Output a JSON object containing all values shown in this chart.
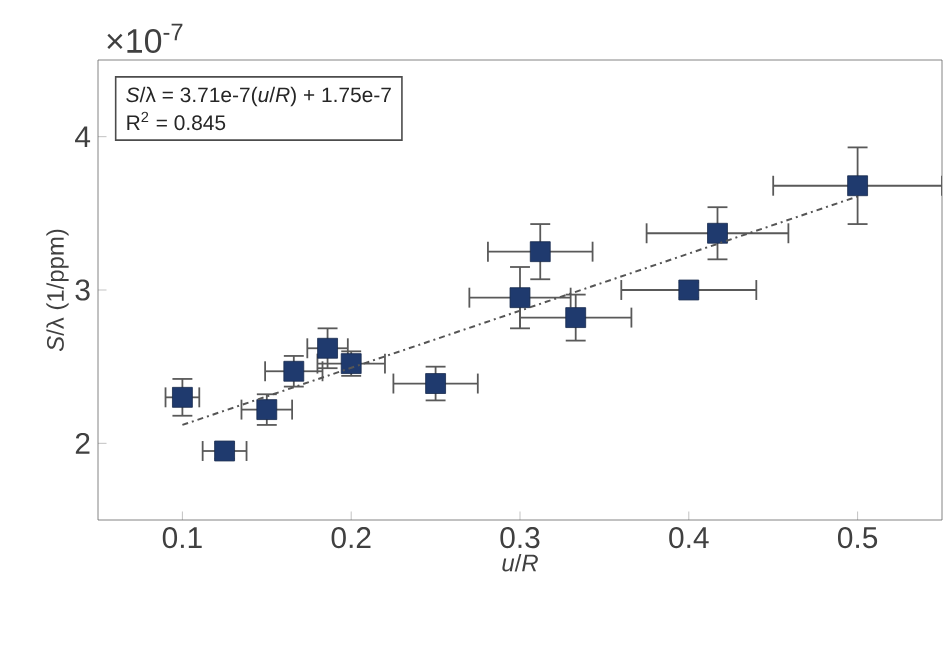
{
  "chart_data": {
    "type": "scatter",
    "xlabel": "*u*/*R*",
    "ylabel": "*S*/λ (1/ppm)",
    "annotations": [
      "*S*/λ = 3.71e-7(*u*/*R*) + 1.75e-7",
      "R$^{2}$ = 0.845",
      "×10$^{-7}$"
    ],
    "xlim": [
      0.05,
      0.55
    ],
    "ylim": [
      1.5,
      4.5
    ],
    "xticks": [
      0.1,
      0.2,
      0.3,
      0.4,
      0.5
    ],
    "yticks": [
      2,
      3,
      4
    ],
    "marker": "square",
    "series": [
      {
        "color": "#1f3a6e",
        "x": [
          0.1,
          0.125,
          0.15,
          0.166,
          0.186,
          0.2,
          0.25,
          0.3,
          0.312,
          0.333,
          0.4,
          0.417,
          0.5
        ],
        "values": [
          2.3,
          1.95,
          2.22,
          2.47,
          2.62,
          2.52,
          2.39,
          2.95,
          3.25,
          2.82,
          3.0,
          3.37,
          3.68
        ],
        "errors": [
          0.12,
          0.05,
          0.1,
          0.1,
          0.13,
          0.08,
          0.11,
          0.2,
          0.18,
          0.15,
          0.05,
          0.17,
          0.25
        ],
        "xerrors": [
          0.01,
          0.013,
          0.015,
          0.017,
          0.012,
          0.02,
          0.025,
          0.03,
          0.031,
          0.033,
          0.04,
          0.042,
          0.05
        ]
      },
      {
        "type": "line",
        "color": "#555555",
        "line_style": "dashdotted",
        "marker": "none",
        "x": [
          0.1,
          0.5
        ],
        "values": [
          2.12,
          3.61
        ]
      }
    ]
  }
}
